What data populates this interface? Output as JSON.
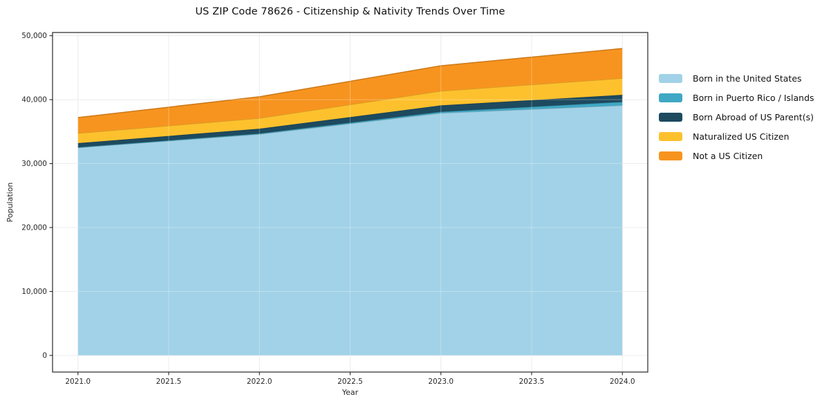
{
  "figure": {
    "background": "#ffffff",
    "axis_color": "#262626",
    "grid_color": "#e4e4e4"
  },
  "chart_data": {
    "type": "area",
    "stacked": true,
    "title": "US ZIP Code 78626 - Citizenship & Nativity Trends Over Time",
    "xlabel": "Year",
    "ylabel": "Population",
    "x": [
      2021,
      2022,
      2023,
      2024
    ],
    "series": [
      {
        "name": "Born in the United States",
        "color": "#A2D2E7",
        "values": [
          32500,
          34600,
          37900,
          39100
        ]
      },
      {
        "name": "Born in Puerto Rico / Islands",
        "color": "#3FA8C4",
        "values": [
          50,
          100,
          200,
          550
        ]
      },
      {
        "name": "Born Abroad of US Parent(s)",
        "color": "#1D4A5F",
        "values": [
          650,
          750,
          1000,
          1100
        ]
      },
      {
        "name": "Naturalized US Citizen",
        "color": "#FDC12E",
        "values": [
          1550,
          1650,
          2250,
          2600
        ]
      },
      {
        "name": "Not a US Citizen",
        "color": "#F7941F",
        "values": [
          2450,
          3350,
          3950,
          4650
        ]
      }
    ],
    "totals": [
      37200,
      40450,
      45300,
      48000
    ],
    "xlim": [
      2020.86,
      2024.14
    ],
    "ylim": [
      -2600,
      50500
    ],
    "xticks": [
      2021.0,
      2021.5,
      2022.0,
      2022.5,
      2023.0,
      2023.5,
      2024.0
    ],
    "xtick_labels": [
      "2021.0",
      "2021.5",
      "2022.0",
      "2022.5",
      "2023.0",
      "2023.5",
      "2024.0"
    ],
    "yticks": [
      0,
      10000,
      20000,
      30000,
      40000,
      50000
    ],
    "ytick_labels": [
      "0",
      "10,000",
      "20,000",
      "30,000",
      "40,000",
      "50,000"
    ],
    "grid": true,
    "legend_position": "right"
  }
}
